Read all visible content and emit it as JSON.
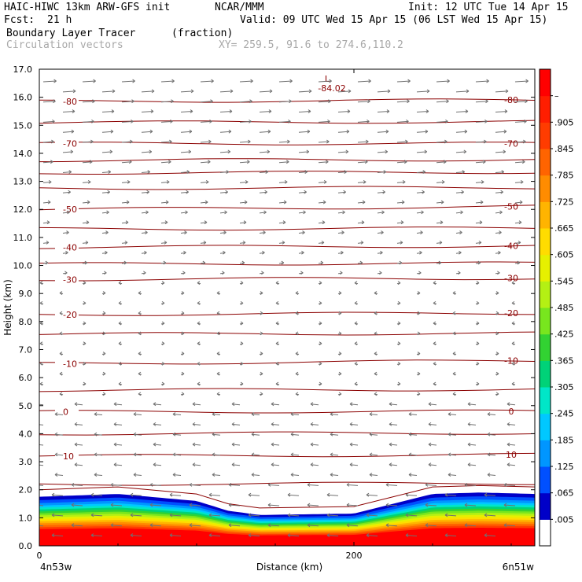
{
  "header": {
    "model": "HAIC-HIWC 13km ARW-GFS init",
    "org": "NCAR/MMM",
    "init": "Init: 12 UTC Tue 14 Apr 15",
    "fcst_label": "Fcst:",
    "fcst_value": "21 h",
    "valid": "Valid: 09 UTC Wed 15 Apr 15 (06 LST Wed 15 Apr 15)",
    "field": "Boundary Layer Tracer",
    "field_units": "(fraction)",
    "vectors": "Circulation vectors",
    "xy": "XY= 259.5, 91.6 to 274.6,110.2"
  },
  "colors": {
    "contour": "#8b0000",
    "vector": "#707070",
    "axis": "#000000"
  },
  "chart_data": {
    "type": "heatmap",
    "ylabel": "Height (km)",
    "xlabel": "Distance (km)",
    "ylim": [
      0,
      17
    ],
    "xlim": [
      0,
      315
    ],
    "yticks": [
      "0.0",
      "1.0",
      "2.0",
      "3.0",
      "4.0",
      "5.0",
      "6.0",
      "7.0",
      "8.0",
      "9.0",
      "10.0",
      "11.0",
      "12.0",
      "13.0",
      "14.0",
      "15.0",
      "16.0",
      "17.0"
    ],
    "xticks": [
      {
        "value": 0,
        "label": "0"
      },
      {
        "value": 200,
        "label": "200"
      }
    ],
    "x_end_labels": {
      "left": "4n53w",
      "right": "6n51w"
    },
    "colorbar": {
      "labels": [
        ".005",
        ".065",
        ".125",
        ".185",
        ".245",
        ".305",
        ".365",
        ".425",
        ".485",
        ".545",
        ".605",
        ".665",
        ".725",
        ".785",
        ".845",
        ".905",
        "–"
      ],
      "colors": [
        "#ffffff",
        "#0000c8",
        "#0050ff",
        "#0096ff",
        "#00c8ff",
        "#00e6c8",
        "#00d278",
        "#32d232",
        "#78e61e",
        "#b4f014",
        "#e6f000",
        "#ffdc00",
        "#ffb400",
        "#ff8c00",
        "#ff6400",
        "#ff3c00",
        "#ff1e00",
        "#ff0000"
      ]
    },
    "tracer_top_km": [
      {
        "x": 0,
        "top": 1.75
      },
      {
        "x": 50,
        "top": 1.85
      },
      {
        "x": 100,
        "top": 1.6
      },
      {
        "x": 120,
        "top": 1.25
      },
      {
        "x": 140,
        "top": 1.1
      },
      {
        "x": 200,
        "top": 1.15
      },
      {
        "x": 225,
        "top": 1.5
      },
      {
        "x": 250,
        "top": 1.85
      },
      {
        "x": 280,
        "top": 1.9
      },
      {
        "x": 315,
        "top": 1.85
      }
    ],
    "temperature_contours": [
      {
        "label": "10",
        "y_left": 3.2,
        "y_right": 3.25
      },
      {
        "label": "0",
        "y_left": 4.78,
        "y_right": 4.8
      },
      {
        "label": "-10",
        "y_left": 6.5,
        "y_right": 6.6
      },
      {
        "label": "-20",
        "y_left": 8.25,
        "y_right": 8.3
      },
      {
        "label": "-30",
        "y_left": 9.5,
        "y_right": 9.55
      },
      {
        "label": "-40",
        "y_left": 10.65,
        "y_right": 10.7
      },
      {
        "label": "-50",
        "y_left": 12.0,
        "y_right": 12.1
      },
      {
        "label": "-70",
        "y_left": 14.35,
        "y_right": 14.35
      },
      {
        "label": "-80",
        "y_left": 15.85,
        "y_right": 15.9
      }
    ],
    "unlabeled_contour_levels_km": [
      2.2,
      4.0,
      5.55,
      7.55,
      10.05,
      11.3,
      12.75,
      13.3,
      13.75,
      15.1
    ],
    "low_marker": {
      "symbol": "L",
      "value": "-84.02",
      "x": 183,
      "y": 16.55
    }
  }
}
